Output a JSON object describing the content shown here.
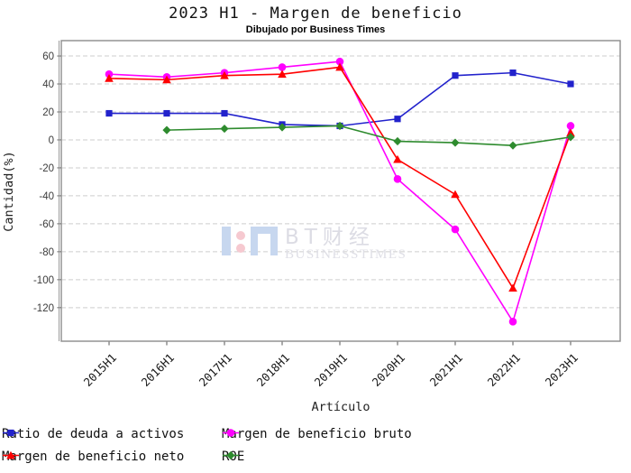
{
  "title": "2023 H1 - Margen de beneficio",
  "subtitle": "Dibujado por Business Times",
  "watermark": {
    "brand": "BT财经",
    "brand_sub": "BUSINESSTIMES"
  },
  "chart_data": {
    "type": "line",
    "title": "2023 H1 - Margen de beneficio",
    "subtitle": "Dibujado por Business Times",
    "xlabel": "Artículo",
    "ylabel": "Cantidad(%)",
    "categories": [
      "2015H1",
      "2016H1",
      "2017H1",
      "2018H1",
      "2019H1",
      "2020H1",
      "2021H1",
      "2022H1",
      "2023H1"
    ],
    "yticks": [
      60,
      40,
      20,
      0,
      -20,
      -40,
      -60,
      -80,
      -100,
      -120
    ],
    "ylim": [
      -144,
      71
    ],
    "grid": "horizontal-dashed",
    "legend_position": "bottom-left",
    "series": [
      {
        "name": "Ratio de deuda a activos",
        "color": "#2222cc",
        "marker": "square",
        "values": [
          19,
          19,
          19,
          11,
          10,
          15,
          46,
          48,
          40
        ]
      },
      {
        "name": "Margen de beneficio bruto",
        "color": "#ff00ff",
        "marker": "circle",
        "values": [
          47,
          45,
          48,
          52,
          56,
          -28,
          -64,
          -130,
          10
        ]
      },
      {
        "name": "Margen de beneficio neto",
        "color": "#ff0000",
        "marker": "triangle",
        "values": [
          44,
          43,
          46,
          47,
          52,
          -14,
          -39,
          -106,
          5
        ]
      },
      {
        "name": "ROE",
        "color": "#2e8b2e",
        "marker": "diamond",
        "values": [
          null,
          7,
          8,
          9,
          10,
          -1,
          -2,
          -4,
          2
        ]
      }
    ]
  }
}
